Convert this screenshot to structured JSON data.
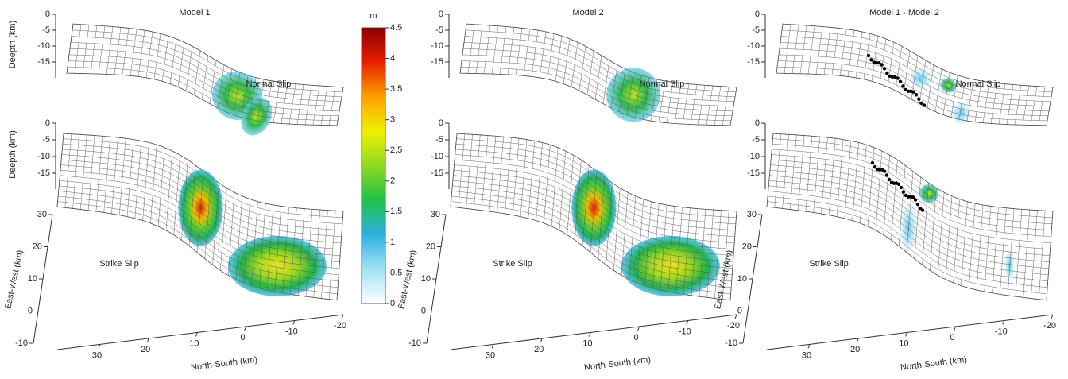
{
  "chart_data": [
    {
      "type": "surface",
      "title": "Model 1",
      "annotations": [
        "Normal Slip",
        "Strike Slip"
      ],
      "zlabel": "Deepth (km)",
      "zticks": [
        0,
        -5,
        -10,
        -15
      ],
      "ylabel": "East-West (km)",
      "yticks": [
        -10,
        0,
        10,
        20,
        30
      ],
      "xlabel": "North-South (km)",
      "xticks": [
        30,
        20,
        10,
        0,
        -10,
        -20
      ]
    },
    {
      "type": "surface",
      "title": "Model 2",
      "annotations": [
        "Normal Slip",
        "Strike Slip"
      ],
      "zticks": [
        0,
        -5,
        -10,
        -15
      ],
      "ylabel": "East-West (km)",
      "yticks": [
        -10,
        0,
        10,
        20,
        30
      ],
      "xlabel": "North-South (km)",
      "xticks": [
        30,
        20,
        10,
        0,
        -10,
        -20
      ]
    },
    {
      "type": "surface",
      "title": "Model 1 -  Model 2",
      "annotations": [
        "Normal Slip",
        "Strike Slip"
      ],
      "zticks": [
        0,
        -5,
        -10,
        -15
      ],
      "ylabel": "East-West (km)",
      "yticks": [
        -10,
        0,
        10,
        20,
        30
      ],
      "xlabel": "North-South (km)",
      "xticks": [
        30,
        20,
        10,
        0,
        -10,
        -20
      ]
    },
    {
      "type": "colorbar",
      "title": "m",
      "ticks": [
        0,
        0.5,
        1,
        1.5,
        2,
        2.5,
        3,
        3.5,
        4,
        4.5
      ],
      "colors": [
        "#ffffff",
        "#9fe3f5",
        "#2fb0e0",
        "#1fc04a",
        "#8fd820",
        "#f0f000",
        "#ffa000",
        "#e82000",
        "#8a0000"
      ]
    }
  ]
}
